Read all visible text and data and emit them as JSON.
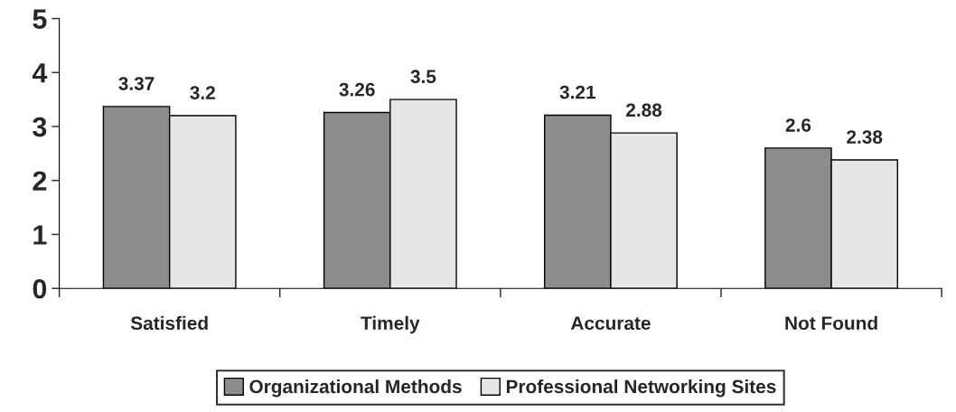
{
  "chart_data": {
    "type": "bar",
    "categories": [
      "Satisfied",
      "Timely",
      "Accurate",
      "Not Found"
    ],
    "series": [
      {
        "name": "Organizational Methods",
        "color": "#8c8c8c",
        "values": [
          3.37,
          3.26,
          3.21,
          2.6
        ]
      },
      {
        "name": "Professional Networking Sites",
        "color": "#e6e6e6",
        "values": [
          3.2,
          3.5,
          2.88,
          2.38
        ]
      }
    ],
    "ylim": [
      0,
      5
    ],
    "yticks": [
      0,
      1,
      2,
      3,
      4,
      5
    ],
    "grid": false,
    "legend": "bottom",
    "data_labels": true
  }
}
